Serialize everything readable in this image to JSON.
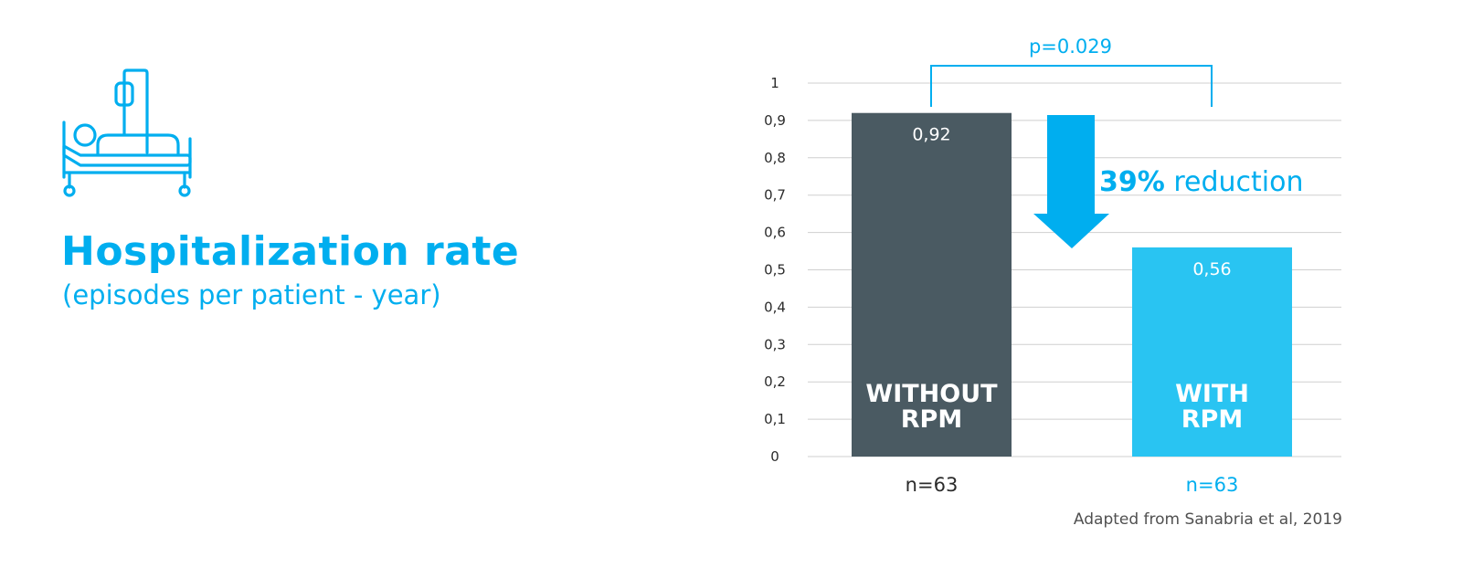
{
  "colors": {
    "accent": "#00aeef",
    "with_rpm": "#29c4f2",
    "without_rpm": "#4a5a62",
    "grid": "#cfcfcf",
    "text_dark": "#2b2b2b",
    "source_text": "#505050"
  },
  "header": {
    "icon": "hospital-bed-icon",
    "title": "Hospitalization rate",
    "subtitle": "(episodes per patient - year)"
  },
  "chart_data": {
    "type": "bar",
    "title": "Hospitalization rate",
    "subtitle": "(episodes per patient - year)",
    "xlabel": "",
    "ylabel": "",
    "categories": [
      "WITHOUT RPM",
      "WITH RPM"
    ],
    "category_lines": [
      [
        "WITHOUT",
        "RPM"
      ],
      [
        "WITH",
        "RPM"
      ]
    ],
    "values": [
      0.92,
      0.56
    ],
    "value_labels": [
      "0,92",
      "0,56"
    ],
    "n_labels": [
      "n=63",
      "n=63"
    ],
    "bar_colors": [
      "#4a5a62",
      "#29c4f2"
    ],
    "ylim": [
      0,
      1
    ],
    "yticks": [
      0,
      0.1,
      0.2,
      0.3,
      0.4,
      0.5,
      0.6,
      0.7,
      0.8,
      0.9,
      1
    ],
    "ytick_labels": [
      "0",
      "0,1",
      "0,2",
      "0,3",
      "0,4",
      "0,5",
      "0,6",
      "0,7",
      "0,8",
      "0,9",
      "1"
    ],
    "grid": true,
    "legend": "none",
    "annotations": {
      "significance": "p=0.029",
      "reduction_value": "39%",
      "reduction_text": "reduction"
    },
    "source": "Adapted from Sanabria et al, 2019"
  }
}
